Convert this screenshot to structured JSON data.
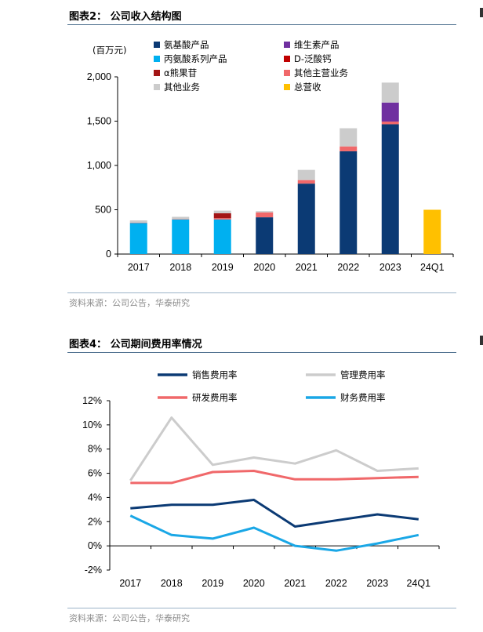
{
  "charts": [
    {
      "title": "图表2：  公司收入结构图",
      "source": "资料来源：公司公告，华泰研究",
      "chart_data": {
        "type": "bar",
        "stacked": true,
        "unit_label": "(百万元)",
        "categories": [
          "2017",
          "2018",
          "2019",
          "2020",
          "2021",
          "2022",
          "2023",
          "24Q1"
        ],
        "ylim": [
          0,
          2000
        ],
        "yticks": [
          0,
          500,
          1000,
          1500,
          2000
        ],
        "ytick_labels": [
          "0",
          "500",
          "1,000",
          "1,500",
          "2,000"
        ],
        "grid": false,
        "series": [
          {
            "name": "氨基酸产品",
            "color": "#0b3a74",
            "values": [
              0,
              0,
              0,
              415,
              795,
              1160,
              1465,
              0
            ]
          },
          {
            "name": "丙氨酸系列产品",
            "color": "#00b0f0",
            "values": [
              350,
              390,
              390,
              0,
              0,
              0,
              0,
              0
            ]
          },
          {
            "name": "α熊果苷",
            "color": "#a31515",
            "values": [
              0,
              0,
              55,
              0,
              0,
              0,
              0,
              0
            ]
          },
          {
            "name": "其他业务",
            "color": "#cccccc",
            "values": [
              25,
              25,
              30,
              15,
              115,
              205,
              225,
              0
            ]
          },
          {
            "name": "维生素产品",
            "color": "#7030a0",
            "values": [
              0,
              0,
              0,
              0,
              0,
              0,
              215,
              0
            ]
          },
          {
            "name": "D-泛酸钙",
            "color": "#c00000",
            "values": [
              0,
              0,
              0,
              0,
              0,
              0,
              0,
              0
            ]
          },
          {
            "name": "其他主营业务",
            "color": "#f0686a",
            "values": [
              5,
              5,
              15,
              55,
              40,
              55,
              30,
              0
            ]
          },
          {
            "name": "总营收",
            "color": "#ffc000",
            "values": [
              0,
              0,
              0,
              0,
              0,
              0,
              0,
              500
            ]
          }
        ]
      }
    },
    {
      "title": "图表4：  公司期间费用率情况",
      "source": "资料来源：公司公告，华泰研究",
      "chart_data": {
        "type": "line",
        "categories": [
          "2017",
          "2018",
          "2019",
          "2020",
          "2021",
          "2022",
          "2023",
          "24Q1"
        ],
        "ylim": [
          -2,
          12
        ],
        "yticks": [
          -2,
          0,
          2,
          4,
          6,
          8,
          10,
          12
        ],
        "ytick_labels": [
          "-2%",
          "0%",
          "2%",
          "4%",
          "6%",
          "8%",
          "10%",
          "12%"
        ],
        "grid": false,
        "series": [
          {
            "name": "销售费用率",
            "color": "#0b3a74",
            "values": [
              3.1,
              3.4,
              3.4,
              3.8,
              1.6,
              2.1,
              2.6,
              2.2
            ]
          },
          {
            "name": "管理费用率",
            "color": "#cccccc",
            "values": [
              5.4,
              10.6,
              6.7,
              7.3,
              6.8,
              7.9,
              6.2,
              6.4
            ]
          },
          {
            "name": "研发费用率",
            "color": "#f0686a",
            "values": [
              5.2,
              5.2,
              6.1,
              6.2,
              5.5,
              5.5,
              5.6,
              5.7
            ]
          },
          {
            "name": "财务费用率",
            "color": "#1aa7e6",
            "values": [
              2.5,
              0.9,
              0.6,
              1.5,
              0.0,
              -0.4,
              0.2,
              0.9
            ]
          }
        ]
      }
    }
  ]
}
